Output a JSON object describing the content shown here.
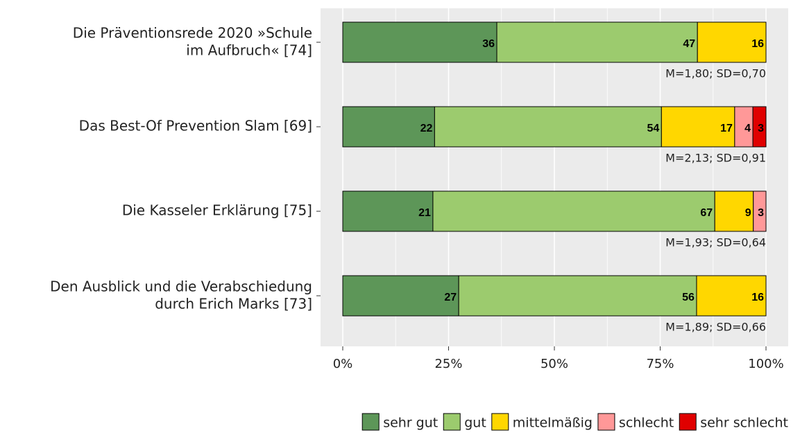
{
  "chart_data": {
    "type": "stacked_barh",
    "categories": [
      "Die Präventionsrede 2020 »Schule\nim Aufbruch« [74]",
      "Das Best-Of Prevention Slam [69]",
      "Die Kasseler Erklärung [75]",
      "Den Ausblick und die Verabschiedung\ndurch Erich Marks [73]"
    ],
    "series": [
      {
        "name": "sehr gut",
        "color": "#5d9658",
        "values": [
          36.4,
          21.7,
          21.3,
          27.4
        ],
        "value_labels": [
          "36",
          "22",
          "21",
          "27"
        ]
      },
      {
        "name": "gut",
        "color": "#9ccb6e",
        "values": [
          47.4,
          53.6,
          66.6,
          56.2
        ],
        "value_labels": [
          "47",
          "54",
          "67",
          "56"
        ]
      },
      {
        "name": "mittelmäßig",
        "color": "#ffd700",
        "values": [
          16.2,
          17.3,
          9.1,
          16.4
        ],
        "value_labels": [
          "16",
          "17",
          "9",
          "16"
        ]
      },
      {
        "name": "schlecht",
        "color": "#ff9898",
        "values": [
          null,
          4.3,
          3.0,
          null
        ],
        "value_labels": [
          null,
          "4",
          "3",
          null
        ]
      },
      {
        "name": "sehr schlecht",
        "color": "#e00000",
        "values": [
          null,
          3.1,
          null,
          null
        ],
        "value_labels": [
          null,
          "3",
          null,
          null
        ]
      }
    ],
    "annotations": [
      "M=1,80; SD=0,70",
      "M=2,13; SD=0,91",
      "M=1,93; SD=0,64",
      "M=1,89; SD=0,66"
    ],
    "xlim": [
      0,
      100
    ],
    "xticks": [
      {
        "value": 0,
        "label": "0%"
      },
      {
        "value": 25,
        "label": "25%"
      },
      {
        "value": 50,
        "label": "50%"
      },
      {
        "value": 75,
        "label": "75%"
      },
      {
        "value": 100,
        "label": "100%"
      }
    ],
    "grid": true,
    "legend": "bottom"
  }
}
